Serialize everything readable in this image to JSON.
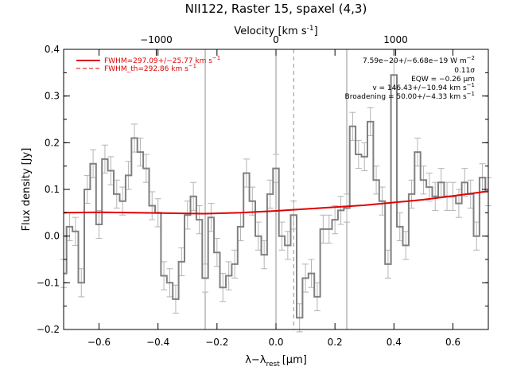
{
  "chart_data": {
    "type": "line",
    "title": "NII122, Raster 15, spaxel (4,3)",
    "xlabel": "λ−λ",
    "xlabel_sub": "rest",
    "xlabel_unit": "[μm]",
    "ylabel": "Flux density [Jy]",
    "top_xlabel": "Velocity [km s",
    "top_xlabel_sup": "-1",
    "top_xlabel_end": "]",
    "xlim": [
      -0.72,
      0.72
    ],
    "ylim": [
      -0.2,
      0.4
    ],
    "x_ticks": [
      -0.6,
      -0.4,
      -0.2,
      0.0,
      0.2,
      0.4,
      0.6
    ],
    "x_tick_labels": [
      "−0.6",
      "−0.4",
      "−0.2",
      "0.0",
      "0.2",
      "0.4",
      "0.6"
    ],
    "y_ticks": [
      -0.2,
      -0.1,
      0.0,
      0.1,
      0.2,
      0.3,
      0.4
    ],
    "y_tick_labels": [
      "−0.2",
      "−0.1",
      "0.0",
      "0.1",
      "0.2",
      "0.3",
      "0.4"
    ],
    "top_ticks": [
      -1000,
      0,
      1000
    ],
    "top_tick_labels": [
      "−1000",
      "0",
      "1000"
    ],
    "top_axis_um_per_kms": 0.000406,
    "vlines_solid": [
      -0.24,
      0.0,
      0.24
    ],
    "vline_dashed": 0.06,
    "legend": {
      "fit": "FWHM=297.09+/−25.77 km s",
      "fit_sup": "−1",
      "th": "FWHM_th=292.86 km s",
      "th_sup": "−1"
    },
    "annotations": [
      {
        "text": "7.59e−20+/−6.68e−19 W m",
        "sup": "−2"
      },
      {
        "text": "0.11σ",
        "sup": ""
      },
      {
        "text": "EQW = −0.26 μm",
        "sup": ""
      },
      {
        "text": "v = 146.43+/−10.94 km s",
        "sup": "−1"
      },
      {
        "text": "Broadening = 50.00+/−4.33 km s",
        "sup": "−1"
      }
    ],
    "colors": {
      "spectrum": "#808080",
      "error": "#b4b4b4",
      "fit": "#e00000",
      "line": "#909090"
    },
    "series": [
      {
        "name": "spectrum",
        "x": [
          -0.72,
          -0.7,
          -0.68,
          -0.66,
          -0.64,
          -0.62,
          -0.6,
          -0.58,
          -0.56,
          -0.54,
          -0.52,
          -0.5,
          -0.48,
          -0.46,
          -0.44,
          -0.42,
          -0.4,
          -0.38,
          -0.36,
          -0.34,
          -0.32,
          -0.3,
          -0.28,
          -0.26,
          -0.24,
          -0.22,
          -0.2,
          -0.18,
          -0.16,
          -0.14,
          -0.12,
          -0.1,
          -0.08,
          -0.06,
          -0.04,
          -0.02,
          0.0,
          0.02,
          0.04,
          0.06,
          0.08,
          0.1,
          0.12,
          0.14,
          0.16,
          0.18,
          0.2,
          0.22,
          0.24,
          0.26,
          0.28,
          0.3,
          0.32,
          0.34,
          0.36,
          0.38,
          0.4,
          0.42,
          0.44,
          0.46,
          0.48,
          0.5,
          0.52,
          0.54,
          0.56,
          0.58,
          0.6,
          0.62,
          0.64,
          0.66,
          0.68,
          0.7,
          0.72
        ],
        "y": [
          -0.08,
          0.02,
          0.01,
          -0.1,
          0.1,
          0.155,
          0.025,
          0.165,
          0.14,
          0.09,
          0.075,
          0.13,
          0.21,
          0.18,
          0.145,
          0.065,
          0.05,
          -0.085,
          -0.1,
          -0.135,
          -0.055,
          0.045,
          0.085,
          0.035,
          -0.09,
          0.04,
          -0.035,
          -0.11,
          -0.085,
          -0.06,
          0.02,
          0.135,
          0.075,
          0.0,
          -0.04,
          0.09,
          0.145,
          0.0,
          -0.02,
          0.045,
          -0.175,
          -0.09,
          -0.08,
          -0.13,
          0.015,
          0.015,
          0.035,
          0.055,
          0.06,
          0.235,
          0.175,
          0.17,
          0.245,
          0.12,
          0.075,
          -0.06,
          0.345,
          0.02,
          -0.02,
          0.09,
          0.18,
          0.12,
          0.105,
          0.085,
          0.115,
          0.085,
          0.085,
          0.07,
          0.115,
          0.09,
          0.0,
          0.125,
          0.095
        ]
      },
      {
        "name": "fit",
        "x": [
          -0.72,
          -0.6,
          -0.48,
          -0.36,
          -0.24,
          -0.12,
          0.0,
          0.1,
          0.2,
          0.3,
          0.4,
          0.5,
          0.6,
          0.72
        ],
        "y": [
          0.05,
          0.051,
          0.05,
          0.049,
          0.048,
          0.05,
          0.054,
          0.058,
          0.062,
          0.066,
          0.072,
          0.078,
          0.086,
          0.096
        ]
      }
    ],
    "error_bar_halfwidth": 0.03
  }
}
